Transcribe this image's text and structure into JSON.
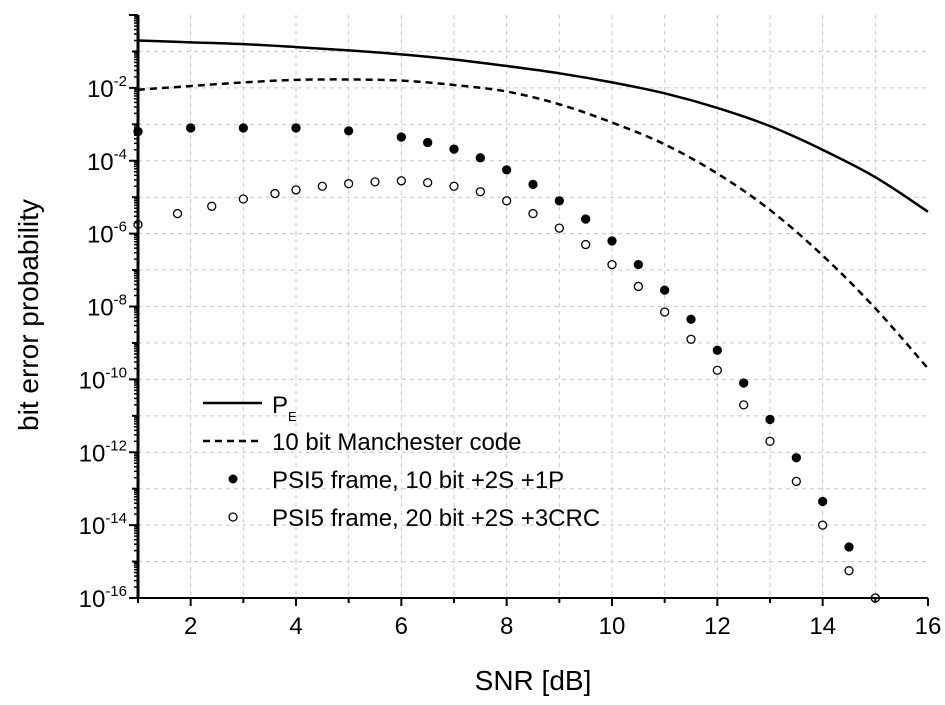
{
  "chart_data": {
    "type": "line",
    "xlabel": "SNR [dB]",
    "ylabel": "bit error probability",
    "x_range": [
      1,
      16
    ],
    "y_range_log10": [
      -16,
      0
    ],
    "y_scale": "log",
    "grid": true,
    "legend_position": "bottom-left",
    "x_ticks": [
      "2",
      "4",
      "6",
      "8",
      "10",
      "12",
      "14",
      "16"
    ],
    "y_ticks": [
      {
        "base": "10",
        "exp": "-2",
        "value": -2
      },
      {
        "base": "10",
        "exp": "-4",
        "value": -4
      },
      {
        "base": "10",
        "exp": "-6",
        "value": -6
      },
      {
        "base": "10",
        "exp": "-8",
        "value": -8
      },
      {
        "base": "10",
        "exp": "-10",
        "value": -10
      },
      {
        "base": "10",
        "exp": "-12",
        "value": -12
      },
      {
        "base": "10",
        "exp": "-14",
        "value": -14
      },
      {
        "base": "10",
        "exp": "-16",
        "value": -16
      }
    ],
    "series": [
      {
        "name": "P",
        "name_subscript": "E",
        "style": "solid-line",
        "x": [
          1,
          2,
          3,
          4,
          5,
          6,
          7,
          8,
          9,
          10,
          11,
          12,
          13,
          14,
          15,
          16
        ],
        "log10_y": [
          -0.7,
          -0.75,
          -0.8,
          -0.88,
          -0.97,
          -1.08,
          -1.22,
          -1.4,
          -1.6,
          -1.85,
          -2.15,
          -2.55,
          -3.05,
          -3.7,
          -4.45,
          -5.4
        ]
      },
      {
        "name": "10 bit Manchester code",
        "style": "dashed-line",
        "x": [
          1,
          2,
          3,
          4,
          5,
          6,
          7,
          8,
          9,
          10,
          11,
          12,
          13,
          14,
          15,
          16
        ],
        "log10_y": [
          -2.05,
          -1.95,
          -1.85,
          -1.78,
          -1.77,
          -1.8,
          -1.92,
          -2.1,
          -2.45,
          -2.95,
          -3.55,
          -4.35,
          -5.35,
          -6.6,
          -8.05,
          -9.7
        ]
      },
      {
        "name": "PSI5 frame, 10 bit +2S +1P",
        "style": "filled-circles",
        "x": [
          1,
          2,
          3,
          4,
          5,
          6,
          6.5,
          7,
          7.5,
          8,
          8.5,
          9,
          9.5,
          10,
          10.5,
          11,
          11.5,
          12,
          12.5,
          13,
          13.5,
          14,
          14.5,
          15
        ],
        "log10_y": [
          -3.2,
          -3.1,
          -3.1,
          -3.1,
          -3.18,
          -3.35,
          -3.5,
          -3.68,
          -3.92,
          -4.25,
          -4.65,
          -5.1,
          -5.6,
          -6.2,
          -6.85,
          -7.55,
          -8.35,
          -9.2,
          -10.1,
          -11.1,
          -12.15,
          -13.35,
          -14.6,
          -16.0
        ]
      },
      {
        "name": "PSI5 frame, 20 bit +2S +3CRC",
        "style": "open-circles",
        "x": [
          1,
          1.75,
          2.4,
          3,
          3.6,
          4,
          4.5,
          5,
          5.5,
          6,
          6.5,
          7,
          7.5,
          8,
          8.5,
          9,
          9.5,
          10,
          10.5,
          11,
          11.5,
          12,
          12.5,
          13,
          13.5,
          14,
          14.5,
          15
        ],
        "log10_y": [
          -5.75,
          -5.45,
          -5.25,
          -5.05,
          -4.9,
          -4.8,
          -4.7,
          -4.63,
          -4.58,
          -4.55,
          -4.6,
          -4.7,
          -4.85,
          -5.1,
          -5.45,
          -5.85,
          -6.3,
          -6.85,
          -7.45,
          -8.15,
          -8.9,
          -9.75,
          -10.7,
          -11.7,
          -12.8,
          -14.0,
          -15.25,
          -16.0
        ]
      }
    ]
  }
}
